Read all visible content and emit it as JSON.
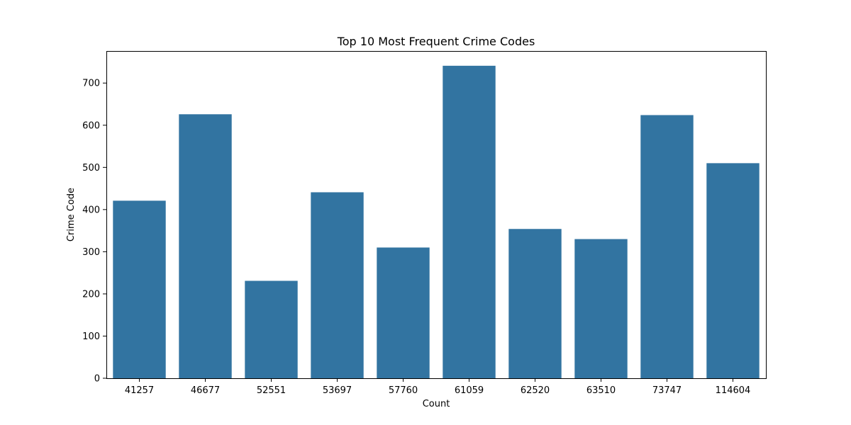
{
  "chart_data": {
    "type": "bar",
    "title": "Top 10 Most Frequent Crime Codes",
    "xlabel": "Count",
    "ylabel": "Crime Code",
    "categories": [
      "41257",
      "46677",
      "52551",
      "53697",
      "57760",
      "61059",
      "62520",
      "63510",
      "73747",
      "114604"
    ],
    "values": [
      421,
      626,
      231,
      441,
      310,
      741,
      354,
      330,
      624,
      510
    ],
    "ylim": [
      0,
      776
    ],
    "yticks": [
      0,
      100,
      200,
      300,
      400,
      500,
      600,
      700
    ],
    "grid": false,
    "bar_color": "#3274a1"
  }
}
